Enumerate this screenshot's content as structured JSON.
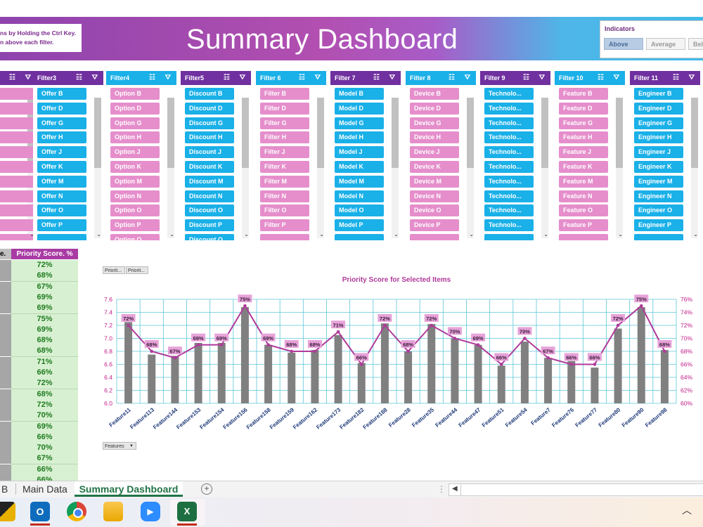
{
  "banner": {
    "instruction_line1": "ns by Holding the Ctrl Key.",
    "instruction_line2": "n above each filter.",
    "title": "Summary Dashboard"
  },
  "indicators": {
    "title": "Indicators",
    "buttons": [
      "Above",
      "Average",
      "Belo"
    ],
    "selected": "Above"
  },
  "slicers": [
    {
      "title": "",
      "color": "#e58ecb",
      "items": [
        "",
        "",
        "",
        "",
        "",
        "",
        "",
        "",
        "",
        "",
        ""
      ]
    },
    {
      "title": "Filter3",
      "color": "#1ab0e8",
      "header_color": "#7030a0",
      "items": [
        "Offer B",
        "Offer D",
        "Offer G",
        "Offer H",
        "Offer J",
        "Offer K",
        "Offer M",
        "Offer N",
        "Offer O",
        "Offer P",
        ""
      ]
    },
    {
      "title": "Filter4",
      "color": "#e58ecb",
      "header_color": "#1ab0e8",
      "items": [
        "Option B",
        "Option D",
        "Option G",
        "Option H",
        "Option J",
        "Option K",
        "Option M",
        "Option N",
        "Option O",
        "Option P",
        "Option Q"
      ]
    },
    {
      "title": "Filter5",
      "color": "#1ab0e8",
      "header_color": "#7030a0",
      "items": [
        "Discount B",
        "Discount D",
        "Discount G",
        "Discount H",
        "Discount J",
        "Discount K",
        "Discount M",
        "Discount N",
        "Discount O",
        "Discount P",
        "Discount Q"
      ]
    },
    {
      "title": "Filter 6",
      "color": "#e58ecb",
      "header_color": "#1ab0e8",
      "items": [
        "Filter B",
        "Filter D",
        "Filter G",
        "Filter H",
        "Filter J",
        "Filter K",
        "Filter M",
        "Filter N",
        "Filter O",
        "Filter P",
        ""
      ]
    },
    {
      "title": "Filter 7",
      "color": "#1ab0e8",
      "header_color": "#7030a0",
      "items": [
        "Model B",
        "Model D",
        "Model G",
        "Model H",
        "Model J",
        "Model K",
        "Model M",
        "Model N",
        "Model O",
        "Model P",
        ""
      ]
    },
    {
      "title": "Filter 8",
      "color": "#e58ecb",
      "header_color": "#1ab0e8",
      "items": [
        "Device B",
        "Device D",
        "Device G",
        "Device H",
        "Device J",
        "Device K",
        "Device M",
        "Device N",
        "Device O",
        "Device P",
        ""
      ]
    },
    {
      "title": "Filter 9",
      "color": "#1ab0e8",
      "header_color": "#7030a0",
      "items": [
        "Technolo...",
        "Technolo...",
        "Technolo...",
        "Technolo...",
        "Technolo...",
        "Technolo...",
        "Technolo...",
        "Technolo...",
        "Technolo...",
        "Technolo...",
        ""
      ]
    },
    {
      "title": "Filter 10",
      "color": "#e58ecb",
      "header_color": "#1ab0e8",
      "items": [
        "Feature B",
        "Feature D",
        "Feature G",
        "Feature H",
        "Feature J",
        "Feature K",
        "Feature M",
        "Feature N",
        "Feature O",
        "Feature P",
        ""
      ]
    },
    {
      "title": "Filter 11",
      "color": "#1ab0e8",
      "header_color": "#7030a0",
      "items": [
        "Engineer B",
        "Engineer D",
        "Engineer G",
        "Engineer H",
        "Engineer J",
        "Engineer K",
        "Engineer M",
        "Engineer N",
        "Engineer O",
        "Engineer P",
        ""
      ]
    }
  ],
  "table": {
    "left_header": "e.",
    "header": "Priority Score. %",
    "values": [
      "72%",
      "68%",
      "67%",
      "69%",
      "69%",
      "75%",
      "69%",
      "68%",
      "68%",
      "71%",
      "66%",
      "72%",
      "68%",
      "72%",
      "70%",
      "69%",
      "66%",
      "70%",
      "67%",
      "66%",
      "66%"
    ]
  },
  "chart_buttons": [
    "Priorit...",
    "Priorit..."
  ],
  "field_button": "Features",
  "chart_data": {
    "type": "bar",
    "title": "Priority Score for Selected Items",
    "categories": [
      "Feature11",
      "Feature113",
      "Feature144",
      "Feature153",
      "Feature154",
      "Feature156",
      "Feature158",
      "Feature159",
      "Feature162",
      "Feature173",
      "Feature182",
      "Feature188",
      "Feature28",
      "Feature35",
      "Feature44",
      "Feature47",
      "Feature51",
      "Feature54",
      "Feature7",
      "Feature76",
      "Feature77",
      "Feature80",
      "Feature90",
      "Feature98"
    ],
    "series": [
      {
        "type": "bar",
        "values": [
          7.25,
          6.75,
          6.73,
          6.93,
          6.93,
          7.48,
          6.9,
          6.78,
          6.82,
          7.05,
          6.62,
          7.23,
          6.8,
          7.22,
          7.0,
          6.9,
          6.58,
          6.95,
          6.7,
          6.65,
          6.55,
          7.15,
          7.48,
          6.82
        ]
      },
      {
        "type": "line",
        "values": [
          72,
          68,
          67,
          69,
          69,
          75,
          69,
          68,
          68,
          71,
          66,
          72,
          68,
          72,
          70,
          69,
          66,
          70,
          67,
          66,
          66,
          72,
          75,
          68
        ]
      }
    ],
    "data_labels": [
      "72%",
      "68%",
      "67%",
      "69%",
      "69%",
      "75%",
      "69%",
      "68%",
      "68%",
      "71%",
      "66%",
      "72%",
      "68%",
      "72%",
      "70%",
      "69%",
      "66%",
      "70%",
      "67%",
      "66%",
      "66%",
      "72%",
      "75%",
      "68%"
    ],
    "y_ticks": [
      "6.0",
      "6.2",
      "6.4",
      "6.6",
      "6.8",
      "7.0",
      "7.2",
      "7.4",
      "7.6"
    ],
    "y2_ticks": [
      "60%",
      "62%",
      "64%",
      "66%",
      "68%",
      "70%",
      "72%",
      "74%",
      "76%"
    ],
    "ylim": [
      6.0,
      7.6
    ],
    "y2lim": [
      60,
      76
    ],
    "grid": true,
    "colors": {
      "bar": "#808080",
      "line": "#b03a9a",
      "label_bg": "#e7a3d9",
      "axis": "#c0208a",
      "grid": "#5cc6d8"
    }
  },
  "sheet_tabs": [
    "B",
    "Main Data",
    "Summary Dashboard"
  ],
  "active_tab": "Summary Dashboard",
  "taskbar": {
    "apps": [
      "file-explorer-icon",
      "outlook-icon",
      "chrome-icon",
      "folder-icon",
      "zoom-icon",
      "excel-icon"
    ]
  }
}
